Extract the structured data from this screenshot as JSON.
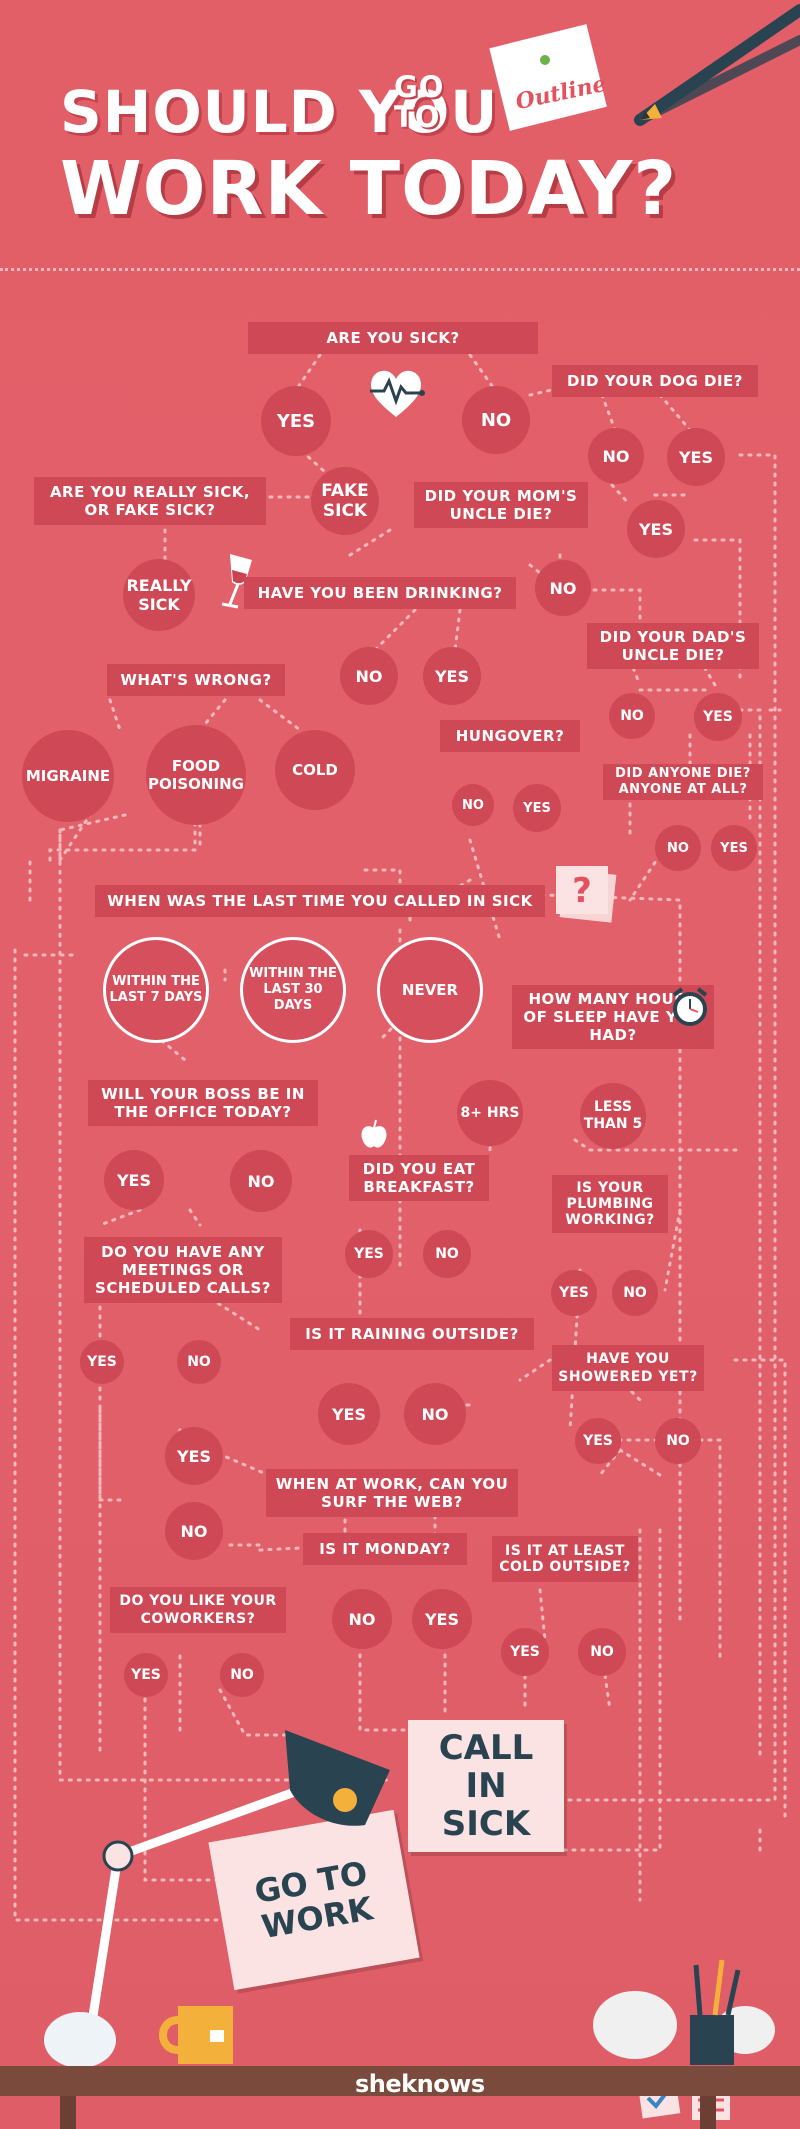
{
  "title": {
    "line1": "SHOULD YOU",
    "go": "GO",
    "to": "TO",
    "line2": "WORK TODAY?",
    "note": "Outline"
  },
  "colors": {
    "background": "#e4616a",
    "box": "#cf4855",
    "line": "#f6b8bc",
    "card": "#fbe3e3",
    "text_dark": "#2a4351"
  },
  "nodes": {
    "are_you_sick": "ARE YOU SICK?",
    "yes1": "YES",
    "no1": "NO",
    "dog_die": "DID YOUR DOG DIE?",
    "dog_no": "NO",
    "dog_yes": "YES",
    "really_or_fake": "ARE YOU REALLY SICK, OR FAKE SICK?",
    "fake_sick": "FAKE SICK",
    "mom_uncle": "DID YOUR MOM'S UNCLE DIE?",
    "mom_yes": "YES",
    "mom_no": "NO",
    "really_sick": "REALLY SICK",
    "drinking": "HAVE YOU BEEN DRINKING?",
    "dad_uncle": "DID YOUR DAD'S UNCLE DIE?",
    "drink_no": "NO",
    "drink_yes": "YES",
    "dad_no": "NO",
    "dad_yes": "YES",
    "whats_wrong": "WHAT'S WRONG?",
    "hungover": "HUNGOVER?",
    "migraine": "MIGRAINE",
    "food": "FOOD POISONING",
    "cold": "COLD",
    "hung_no": "NO",
    "hung_yes": "YES",
    "anyone_die": "DID ANYONE DIE? ANYONE AT ALL?",
    "any_no": "NO",
    "any_yes": "YES",
    "last_time": "WHEN WAS THE LAST TIME YOU CALLED IN SICK",
    "within7": "WITHIN THE LAST 7 DAYS",
    "within30": "WITHIN THE LAST 30 DAYS",
    "never": "NEVER",
    "sleep": "HOW MANY HOURS OF SLEEP HAVE YOU HAD?",
    "boss": "WILL YOUR BOSS BE IN THE OFFICE TODAY?",
    "eight": "8+ HRS",
    "less5": "LESS THAN 5",
    "boss_yes": "YES",
    "boss_no": "NO",
    "breakfast": "DID YOU EAT BREAKFAST?",
    "plumbing": "IS YOUR PLUMBING WORKING?",
    "meetings": "DO YOU HAVE ANY MEETINGS OR SCHEDULED CALLS?",
    "bf_yes": "YES",
    "bf_no": "NO",
    "pl_yes": "YES",
    "pl_no": "NO",
    "meet_yes": "YES",
    "meet_no": "NO",
    "raining": "IS IT RAINING OUTSIDE?",
    "showered": "HAVE YOU SHOWERED YET?",
    "rain_yes": "YES",
    "rain_no": "NO",
    "sh_yes": "YES",
    "sh_no": "NO",
    "surf_yes": "YES",
    "surf": "WHEN AT WORK, CAN YOU SURF THE WEB?",
    "surf_no": "NO",
    "monday": "IS IT MONDAY?",
    "cold_outside": "IS IT AT LEAST COLD OUTSIDE?",
    "coworkers": "DO YOU LIKE YOUR COWORKERS?",
    "mon_no": "NO",
    "mon_yes": "YES",
    "co_yes": "YES",
    "co_no": "NO",
    "cold_yes": "YES",
    "cold_no": "NO"
  },
  "outcomes": {
    "call_in_sick": "CALL IN SICK",
    "go_to_work": "GO TO WORK"
  },
  "brand": "sheknows",
  "icons": [
    "heartbeat-icon",
    "wine-glass-icon",
    "question-note-icon",
    "alarm-clock-icon",
    "apple-icon",
    "desk-lamp-icon",
    "crumpled-paper-icon",
    "mug-icon",
    "pencil-cup-icon",
    "checklist-icon",
    "sticky-note-icon"
  ]
}
